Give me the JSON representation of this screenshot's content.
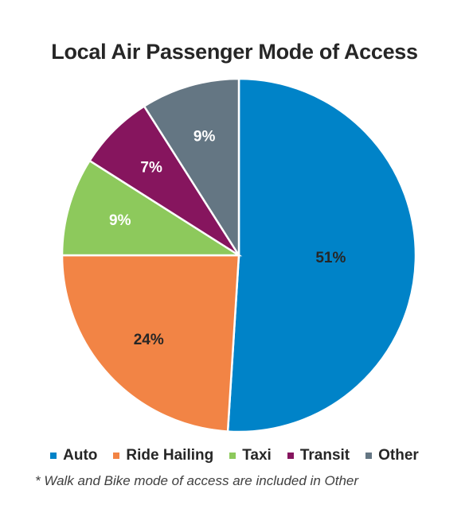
{
  "chart_data": {
    "type": "pie",
    "title": "Local Air Passenger Mode of Access",
    "categories": [
      "Auto",
      "Ride Hailing",
      "Taxi",
      "Transit",
      "Other"
    ],
    "values": [
      51,
      24,
      9,
      7,
      9
    ],
    "labels": [
      "51%",
      "24%",
      "9%",
      "7%",
      "9%"
    ],
    "colors": [
      "#0083C8",
      "#F28445",
      "#8DC95C",
      "#86155E",
      "#647683"
    ],
    "label_colors": [
      "#262626",
      "#262626",
      "#ffffff",
      "#ffffff",
      "#ffffff"
    ],
    "legend_position": "bottom",
    "footnote": "* Walk and Bike mode of access are included in Other"
  }
}
